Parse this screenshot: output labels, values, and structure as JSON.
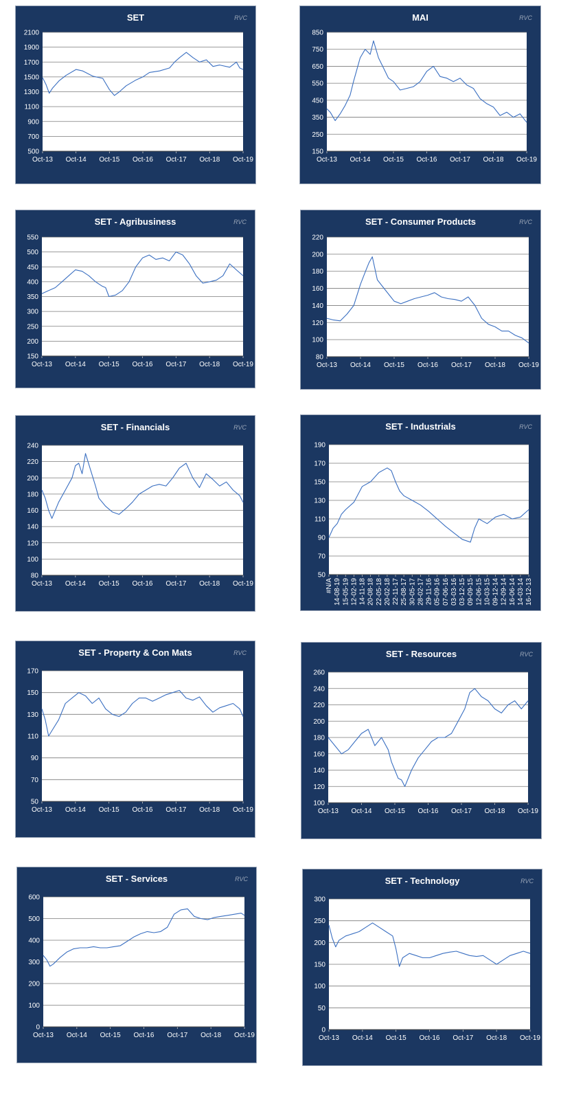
{
  "colors": {
    "panel_bg": "#1b3761",
    "plot_bg": "#ffffff",
    "grid": "#7a7a7a",
    "series": "#3a6fc1",
    "tick_text": "#ffffff",
    "watermark": "#9aa6b8"
  },
  "watermark": "RVC",
  "chart_data": [
    {
      "type": "line",
      "title": "SET",
      "ylim": [
        500,
        2100
      ],
      "yticks": [
        500,
        700,
        900,
        1100,
        1300,
        1500,
        1700,
        1900,
        2100
      ],
      "xticks": [
        "Oct-13",
        "Oct-14",
        "Oct-15",
        "Oct-16",
        "Oct-17",
        "Oct-18",
        "Oct-19"
      ],
      "xlim": [
        0,
        6
      ],
      "series": [
        {
          "x": [
            0,
            0.1,
            0.2,
            0.3,
            0.5,
            0.7,
            1.0,
            1.2,
            1.5,
            1.8,
            2.0,
            2.15,
            2.3,
            2.5,
            2.8,
            3.0,
            3.2,
            3.5,
            3.8,
            3.95,
            4.1,
            4.3,
            4.5,
            4.7,
            4.9,
            5.1,
            5.3,
            5.6,
            5.8,
            5.9,
            6.0
          ],
          "y": [
            1490,
            1400,
            1280,
            1350,
            1450,
            1520,
            1600,
            1580,
            1510,
            1480,
            1330,
            1250,
            1300,
            1380,
            1460,
            1500,
            1560,
            1580,
            1620,
            1700,
            1760,
            1830,
            1760,
            1700,
            1730,
            1640,
            1660,
            1630,
            1700,
            1620,
            1600
          ]
        }
      ]
    },
    {
      "type": "line",
      "title": "MAI",
      "ylim": [
        150,
        850
      ],
      "yticks": [
        150,
        250,
        350,
        450,
        550,
        650,
        750,
        850
      ],
      "xticks": [
        "Oct-13",
        "Oct-14",
        "Oct-15",
        "Oct-16",
        "Oct-17",
        "Oct-18",
        "Oct-19"
      ],
      "xlim": [
        0,
        6
      ],
      "series": [
        {
          "x": [
            0,
            0.1,
            0.25,
            0.4,
            0.55,
            0.7,
            0.8,
            1.0,
            1.15,
            1.3,
            1.4,
            1.55,
            1.7,
            1.85,
            2.0,
            2.2,
            2.4,
            2.6,
            2.8,
            3.0,
            3.2,
            3.4,
            3.6,
            3.8,
            4.0,
            4.2,
            4.4,
            4.6,
            4.8,
            5.0,
            5.2,
            5.4,
            5.6,
            5.8,
            6.0
          ],
          "y": [
            400,
            380,
            330,
            370,
            420,
            480,
            560,
            700,
            750,
            720,
            800,
            700,
            640,
            580,
            560,
            510,
            520,
            530,
            560,
            620,
            650,
            590,
            580,
            560,
            580,
            540,
            520,
            460,
            430,
            410,
            360,
            380,
            350,
            370,
            320
          ]
        }
      ]
    },
    {
      "type": "line",
      "title": "SET - Agribusiness",
      "ylim": [
        150,
        550
      ],
      "yticks": [
        150,
        200,
        250,
        300,
        350,
        400,
        450,
        500,
        550
      ],
      "xticks": [
        "Oct-13",
        "Oct-14",
        "Oct-15",
        "Oct-16",
        "Oct-17",
        "Oct-18",
        "Oct-19"
      ],
      "xlim": [
        0,
        6
      ],
      "series": [
        {
          "x": [
            0,
            0.2,
            0.4,
            0.6,
            0.8,
            1.0,
            1.2,
            1.4,
            1.6,
            1.8,
            1.9,
            2.0,
            2.2,
            2.4,
            2.6,
            2.8,
            3.0,
            3.2,
            3.4,
            3.6,
            3.8,
            4.0,
            4.2,
            4.4,
            4.6,
            4.8,
            5.0,
            5.2,
            5.4,
            5.6,
            5.8,
            6.0
          ],
          "y": [
            360,
            370,
            380,
            400,
            420,
            440,
            435,
            420,
            400,
            385,
            380,
            350,
            355,
            370,
            400,
            450,
            480,
            490,
            475,
            480,
            470,
            500,
            490,
            460,
            420,
            395,
            400,
            405,
            420,
            460,
            440,
            420
          ]
        }
      ]
    },
    {
      "type": "line",
      "title": "SET - Consumer Products",
      "ylim": [
        80,
        220
      ],
      "yticks": [
        80,
        100,
        120,
        140,
        160,
        180,
        200,
        220
      ],
      "xticks": [
        "Oct-13",
        "Oct-14",
        "Oct-15",
        "Oct-16",
        "Oct-17",
        "Oct-18",
        "Oct-19"
      ],
      "xlim": [
        0,
        6
      ],
      "series": [
        {
          "x": [
            0,
            0.2,
            0.4,
            0.6,
            0.8,
            1.0,
            1.15,
            1.25,
            1.35,
            1.5,
            1.7,
            1.9,
            2.0,
            2.2,
            2.4,
            2.6,
            2.8,
            3.0,
            3.2,
            3.4,
            3.6,
            3.8,
            4.0,
            4.2,
            4.4,
            4.6,
            4.8,
            5.0,
            5.2,
            5.4,
            5.6,
            5.8,
            6.0
          ],
          "y": [
            125,
            123,
            122,
            130,
            140,
            165,
            180,
            190,
            197,
            170,
            160,
            150,
            145,
            142,
            145,
            148,
            150,
            152,
            155,
            150,
            148,
            147,
            145,
            150,
            140,
            125,
            118,
            115,
            110,
            110,
            105,
            102,
            96
          ]
        }
      ]
    },
    {
      "type": "line",
      "title": "SET - Financials",
      "ylim": [
        80,
        240
      ],
      "yticks": [
        80,
        100,
        120,
        140,
        160,
        180,
        200,
        220,
        240
      ],
      "xticks": [
        "Oct-13",
        "Oct-14",
        "Oct-15",
        "Oct-16",
        "Oct-17",
        "Oct-18",
        "Oct-19"
      ],
      "xlim": [
        0,
        6
      ],
      "series": [
        {
          "x": [
            0,
            0.1,
            0.2,
            0.3,
            0.5,
            0.7,
            0.9,
            1.0,
            1.1,
            1.2,
            1.3,
            1.45,
            1.6,
            1.7,
            1.9,
            2.1,
            2.3,
            2.5,
            2.7,
            2.9,
            3.1,
            3.3,
            3.5,
            3.7,
            3.9,
            4.1,
            4.3,
            4.5,
            4.7,
            4.9,
            5.1,
            5.3,
            5.5,
            5.7,
            5.9,
            6.0
          ],
          "y": [
            185,
            175,
            160,
            150,
            170,
            185,
            200,
            215,
            218,
            205,
            230,
            210,
            190,
            175,
            165,
            158,
            155,
            162,
            170,
            180,
            185,
            190,
            192,
            190,
            200,
            212,
            218,
            200,
            188,
            205,
            198,
            190,
            195,
            185,
            178,
            170
          ]
        }
      ]
    },
    {
      "type": "line",
      "title": "SET - Industrials",
      "ylim": [
        50,
        190
      ],
      "yticks": [
        50,
        70,
        90,
        110,
        130,
        150,
        170,
        190
      ],
      "xticks": [
        "#N/A",
        "14-08-19",
        "15-05-19",
        "12-02-19",
        "14-11-18",
        "20-08-18",
        "22-05-18",
        "20-02-18",
        "22-11-17",
        "25-08-17",
        "30-05-17",
        "28-02-17",
        "29-11-16",
        "05-09-16",
        "07-06-16",
        "03-03-16",
        "03-12-15",
        "09-09-15",
        "12-06-15",
        "10-03-15",
        "09-12-14",
        "12-09-14",
        "16-06-14",
        "14-03-14",
        "16-12-13"
      ],
      "xlim": [
        0,
        24
      ],
      "series": [
        {
          "x": [
            0,
            0.5,
            1,
            1.5,
            2,
            3,
            4,
            5,
            6,
            7,
            7.5,
            8,
            8.5,
            9,
            10,
            11,
            12,
            13,
            14,
            15,
            16,
            17,
            17.5,
            18,
            19,
            20,
            21,
            22,
            23,
            24
          ],
          "y": [
            90,
            100,
            105,
            115,
            120,
            128,
            145,
            150,
            160,
            165,
            162,
            150,
            140,
            135,
            130,
            125,
            118,
            110,
            102,
            95,
            88,
            85,
            100,
            110,
            105,
            112,
            115,
            110,
            112,
            120
          ]
        }
      ]
    },
    {
      "type": "line",
      "title": "SET - Property & Con Mats",
      "ylim": [
        50,
        170
      ],
      "yticks": [
        50,
        70,
        90,
        110,
        130,
        150,
        170
      ],
      "xticks": [
        "Oct-13",
        "Oct-14",
        "Oct-15",
        "Oct-16",
        "Oct-17",
        "Oct-18",
        "Oct-19"
      ],
      "xlim": [
        0,
        6
      ],
      "series": [
        {
          "x": [
            0,
            0.1,
            0.2,
            0.3,
            0.5,
            0.7,
            0.9,
            1.1,
            1.3,
            1.5,
            1.7,
            1.9,
            2.1,
            2.3,
            2.5,
            2.7,
            2.9,
            3.1,
            3.3,
            3.5,
            3.7,
            3.9,
            4.1,
            4.3,
            4.5,
            4.7,
            4.9,
            5.1,
            5.3,
            5.5,
            5.7,
            5.9,
            6.0
          ],
          "y": [
            135,
            125,
            110,
            115,
            125,
            140,
            145,
            150,
            147,
            140,
            145,
            135,
            130,
            128,
            132,
            140,
            145,
            145,
            142,
            145,
            148,
            150,
            152,
            145,
            143,
            146,
            138,
            132,
            136,
            138,
            140,
            135,
            128
          ]
        }
      ]
    },
    {
      "type": "line",
      "title": "SET - Resources",
      "ylim": [
        100,
        260
      ],
      "yticks": [
        100,
        120,
        140,
        160,
        180,
        200,
        220,
        240,
        260
      ],
      "xticks": [
        "Oct-13",
        "Oct-14",
        "Oct-15",
        "Oct-16",
        "Oct-17",
        "Oct-18",
        "Oct-19"
      ],
      "xlim": [
        0,
        6
      ],
      "series": [
        {
          "x": [
            0,
            0.2,
            0.4,
            0.6,
            0.8,
            1.0,
            1.2,
            1.4,
            1.6,
            1.8,
            1.9,
            2.0,
            2.1,
            2.2,
            2.3,
            2.5,
            2.7,
            2.9,
            3.1,
            3.3,
            3.5,
            3.7,
            3.9,
            4.1,
            4.25,
            4.4,
            4.6,
            4.8,
            5.0,
            5.2,
            5.4,
            5.6,
            5.8,
            6.0
          ],
          "y": [
            180,
            170,
            160,
            165,
            175,
            185,
            190,
            170,
            180,
            165,
            150,
            140,
            130,
            128,
            120,
            140,
            155,
            165,
            175,
            180,
            180,
            185,
            200,
            215,
            235,
            240,
            230,
            225,
            215,
            210,
            220,
            225,
            215,
            225
          ]
        }
      ]
    },
    {
      "type": "line",
      "title": "SET - Services",
      "ylim": [
        0,
        600
      ],
      "yticks": [
        0,
        100,
        200,
        300,
        400,
        500,
        600
      ],
      "xticks": [
        "Oct-13",
        "Oct-14",
        "Oct-15",
        "Oct-16",
        "Oct-17",
        "Oct-18",
        "Oct-19"
      ],
      "xlim": [
        0,
        6
      ],
      "series": [
        {
          "x": [
            0,
            0.1,
            0.2,
            0.3,
            0.5,
            0.7,
            0.9,
            1.1,
            1.3,
            1.5,
            1.7,
            1.9,
            2.1,
            2.3,
            2.5,
            2.7,
            2.9,
            3.1,
            3.3,
            3.5,
            3.7,
            3.9,
            4.1,
            4.3,
            4.5,
            4.7,
            4.9,
            5.1,
            5.3,
            5.5,
            5.7,
            5.9,
            6.0
          ],
          "y": [
            330,
            310,
            280,
            290,
            320,
            345,
            360,
            365,
            365,
            370,
            365,
            365,
            370,
            375,
            395,
            415,
            430,
            440,
            435,
            440,
            460,
            520,
            540,
            545,
            510,
            500,
            495,
            505,
            510,
            515,
            520,
            525,
            515
          ]
        }
      ]
    },
    {
      "type": "line",
      "title": "SET - Technology",
      "ylim": [
        0,
        300
      ],
      "yticks": [
        0,
        50,
        100,
        150,
        200,
        250,
        300
      ],
      "xticks": [
        "Oct-13",
        "Oct-14",
        "Oct-15",
        "Oct-16",
        "Oct-17",
        "Oct-18",
        "Oct-19"
      ],
      "xlim": [
        0,
        6
      ],
      "series": [
        {
          "x": [
            0,
            0.1,
            0.2,
            0.3,
            0.5,
            0.7,
            0.9,
            1.1,
            1.3,
            1.5,
            1.7,
            1.9,
            2.0,
            2.1,
            2.2,
            2.4,
            2.6,
            2.8,
            3.0,
            3.2,
            3.4,
            3.6,
            3.8,
            4.0,
            4.2,
            4.4,
            4.6,
            4.8,
            5.0,
            5.2,
            5.4,
            5.6,
            5.8,
            6.0
          ],
          "y": [
            240,
            210,
            190,
            205,
            215,
            220,
            225,
            235,
            245,
            235,
            225,
            215,
            185,
            145,
            165,
            175,
            170,
            165,
            165,
            170,
            175,
            178,
            180,
            175,
            170,
            168,
            170,
            160,
            150,
            160,
            170,
            175,
            180,
            175
          ]
        }
      ]
    }
  ]
}
